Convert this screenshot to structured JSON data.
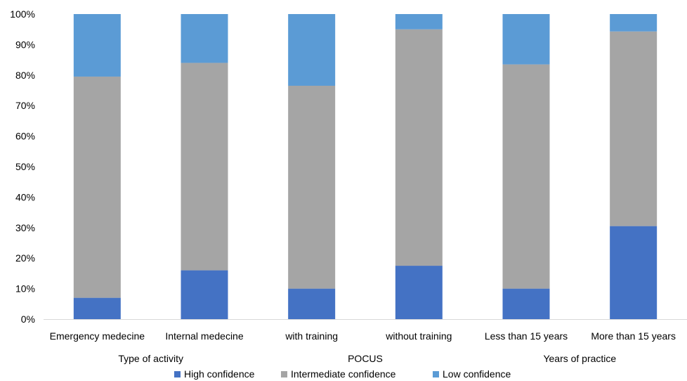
{
  "chart_data": {
    "type": "bar",
    "stacked": true,
    "categories": [
      "Emergency medecine",
      "Internal medecine",
      "with training",
      "without training",
      "Less than 15 years",
      "More than 15 years"
    ],
    "groups": [
      {
        "label": "Type of activity",
        "categories": [
          0,
          1
        ]
      },
      {
        "label": "POCUS",
        "categories": [
          2,
          3
        ]
      },
      {
        "label": "Years of practice",
        "categories": [
          4,
          5
        ]
      }
    ],
    "series": [
      {
        "name": "High confidence",
        "color": "#4472C4",
        "values": [
          7,
          16,
          10,
          17.5,
          10,
          30.5
        ]
      },
      {
        "name": "Intermediate confidence",
        "color": "#A5A5A5",
        "values": [
          72.5,
          68,
          66.5,
          77.5,
          73.5,
          63.8
        ]
      },
      {
        "name": "Low confidence",
        "color": "#5B9BD5",
        "values": [
          20.5,
          16,
          23.5,
          5,
          16.5,
          5.7
        ]
      }
    ],
    "yticks": [
      "0%",
      "10%",
      "20%",
      "30%",
      "40%",
      "50%",
      "60%",
      "70%",
      "80%",
      "90%",
      "100%"
    ],
    "ylim": [
      0,
      100
    ],
    "grid": false,
    "legend_position": "bottom"
  }
}
